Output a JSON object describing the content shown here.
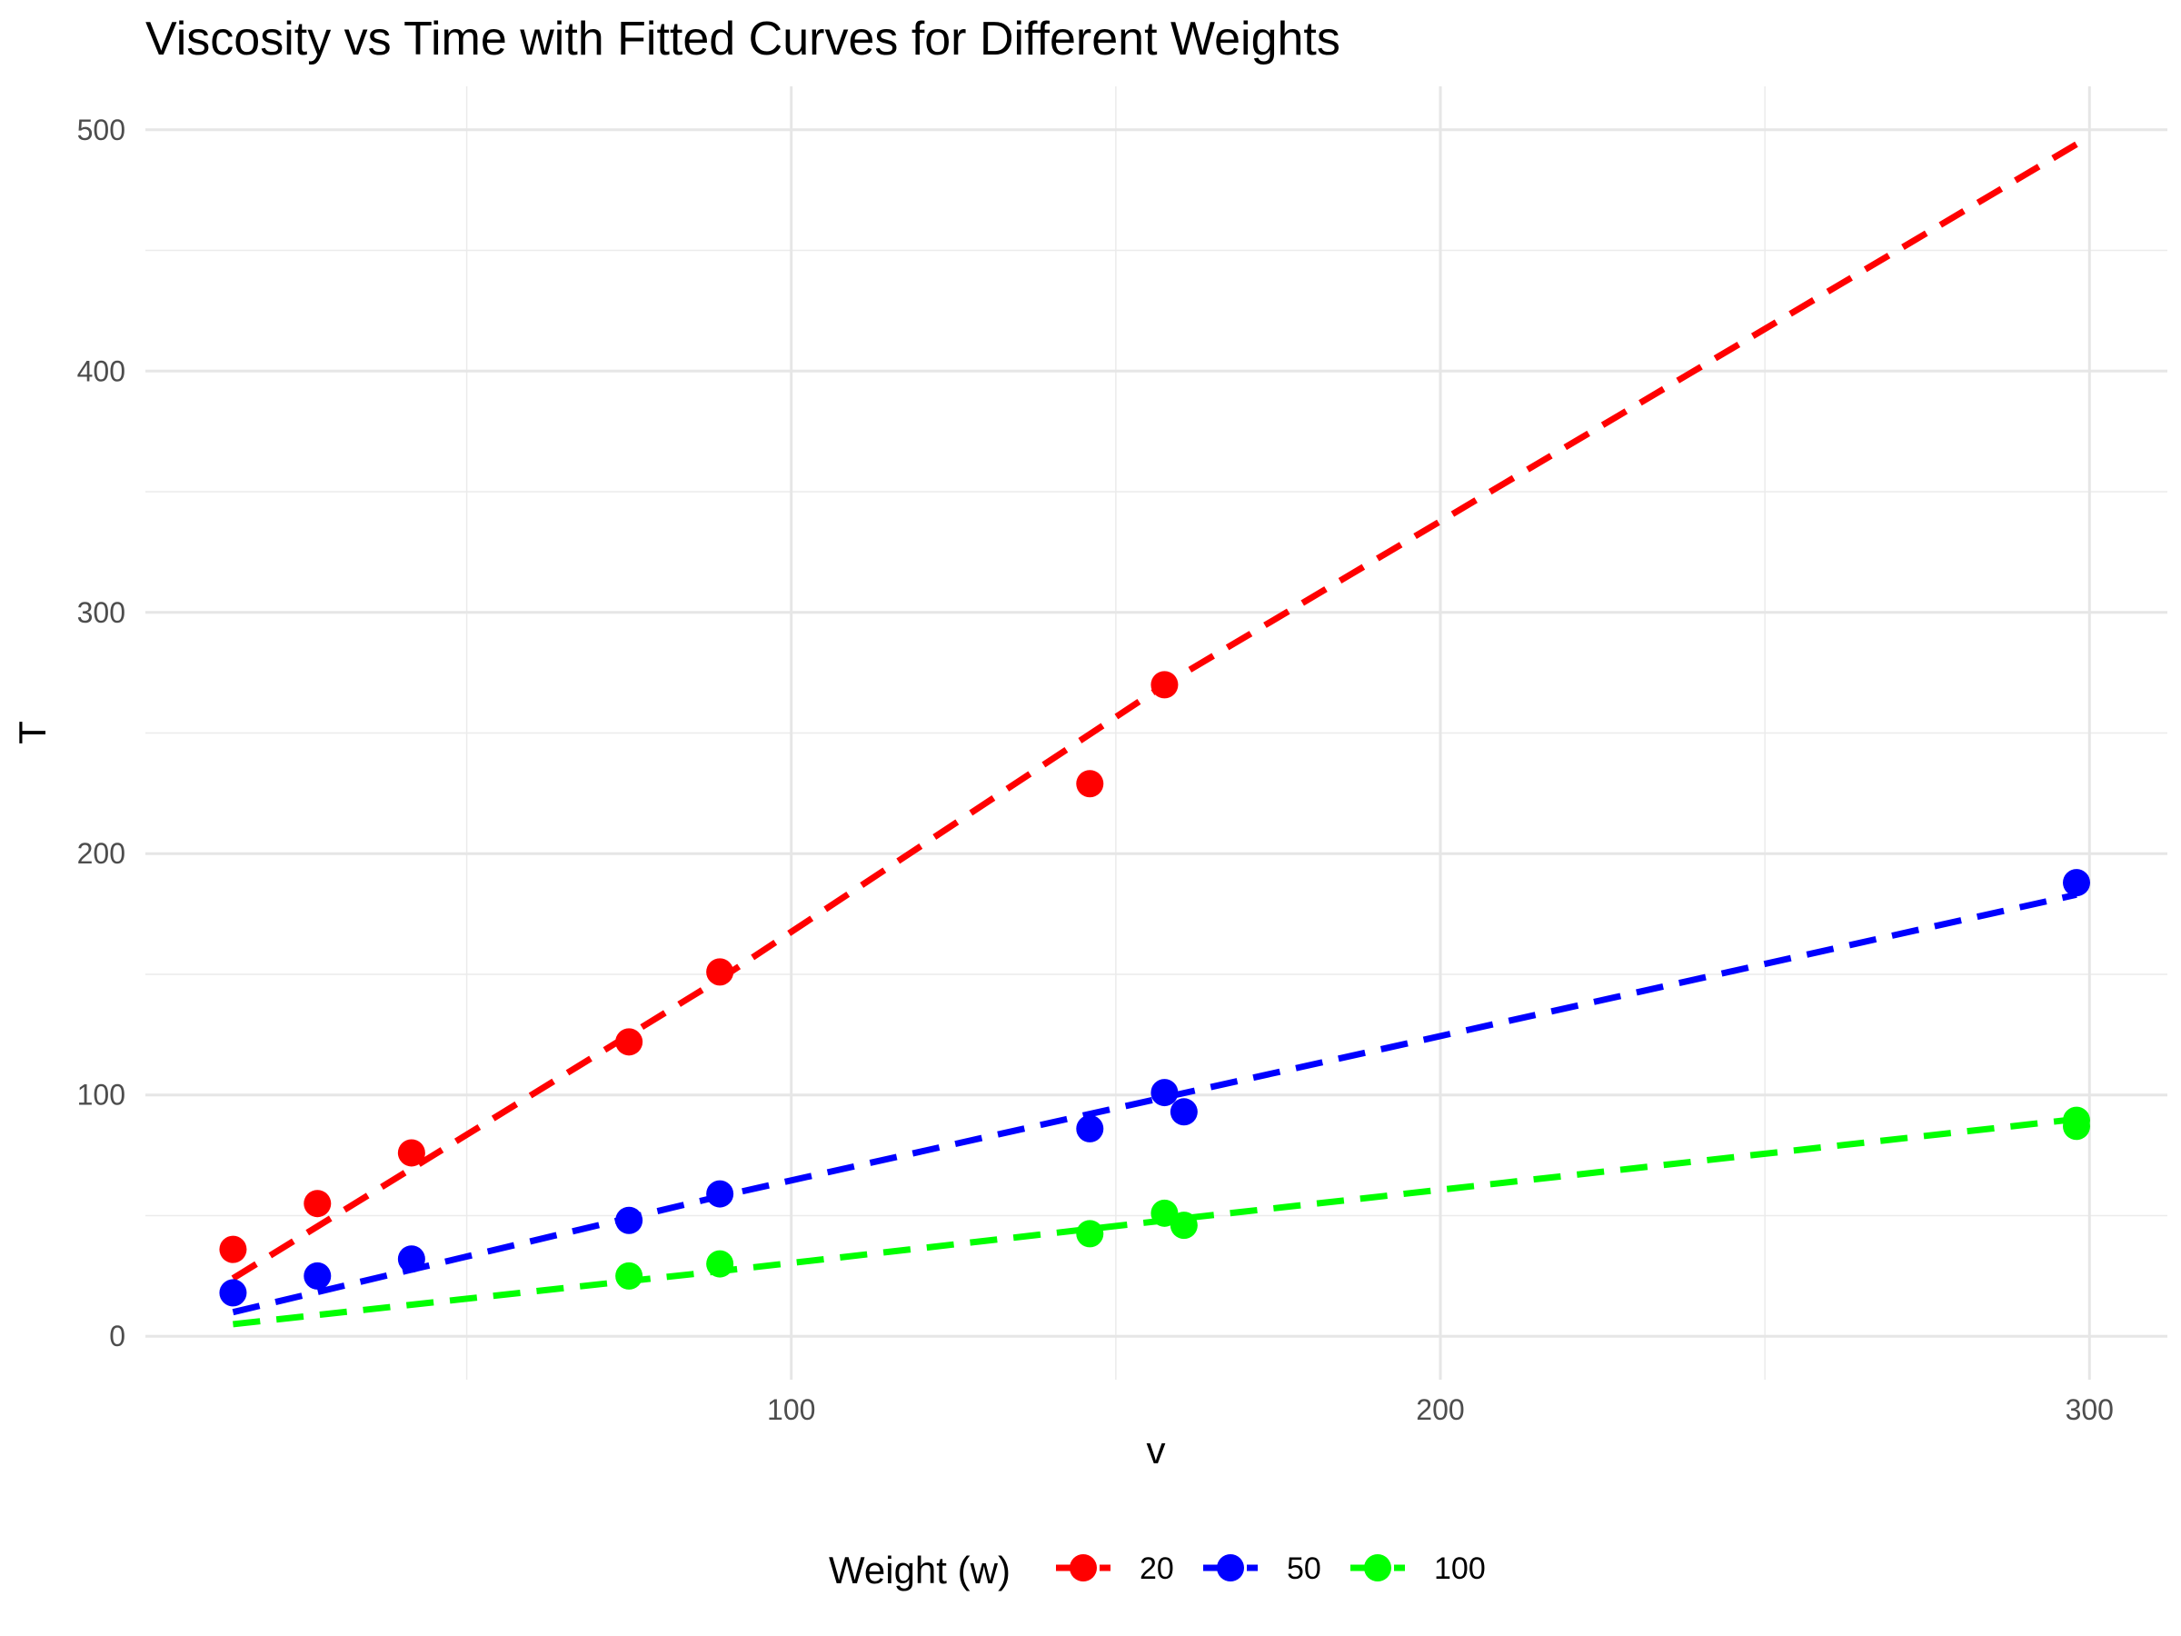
{
  "chart_data": {
    "type": "scatter",
    "title": "Viscosity vs Time with Fitted Curves for Different Weights",
    "xlabel": "v",
    "ylabel": "T",
    "xlim": [
      0.5,
      312
    ],
    "ylim": [
      -18,
      518
    ],
    "xticks": [
      100,
      200,
      300
    ],
    "xminor": [
      50,
      150,
      250
    ],
    "yticks": [
      0,
      100,
      200,
      300,
      400,
      500
    ],
    "yminor": [
      50,
      150,
      250,
      350,
      450
    ],
    "grid": true,
    "legend": {
      "title": "Weight (w)",
      "position": "bottom"
    },
    "series": [
      {
        "name": "20",
        "color": "#ff0000",
        "points": [
          [
            14,
            36
          ],
          [
            27,
            55
          ],
          [
            41.5,
            76
          ],
          [
            75,
            122
          ],
          [
            89,
            151
          ],
          [
            146,
            229
          ],
          [
            157.5,
            270
          ]
        ],
        "fit": [
          [
            14,
            24
          ],
          [
            89,
            148
          ],
          [
            157.5,
            270
          ],
          [
            298,
            494
          ]
        ]
      },
      {
        "name": "50",
        "color": "#0000ff",
        "points": [
          [
            14,
            18
          ],
          [
            27,
            25
          ],
          [
            41.5,
            32
          ],
          [
            75,
            48
          ],
          [
            89,
            59
          ],
          [
            146,
            86
          ],
          [
            157.5,
            101
          ],
          [
            160.5,
            93
          ],
          [
            298,
            188
          ]
        ],
        "fit": [
          [
            14,
            10
          ],
          [
            89,
            58
          ],
          [
            157.5,
            99
          ],
          [
            298,
            183
          ]
        ]
      },
      {
        "name": "100",
        "color": "#00ff00",
        "points": [
          [
            75,
            25
          ],
          [
            89,
            30
          ],
          [
            146,
            42.5
          ],
          [
            157.5,
            51
          ],
          [
            160.5,
            46
          ],
          [
            298,
            87
          ],
          [
            298,
            89.5
          ]
        ],
        "fit": [
          [
            14,
            5
          ],
          [
            89,
            27
          ],
          [
            157.5,
            48
          ],
          [
            298,
            90
          ]
        ]
      }
    ]
  }
}
